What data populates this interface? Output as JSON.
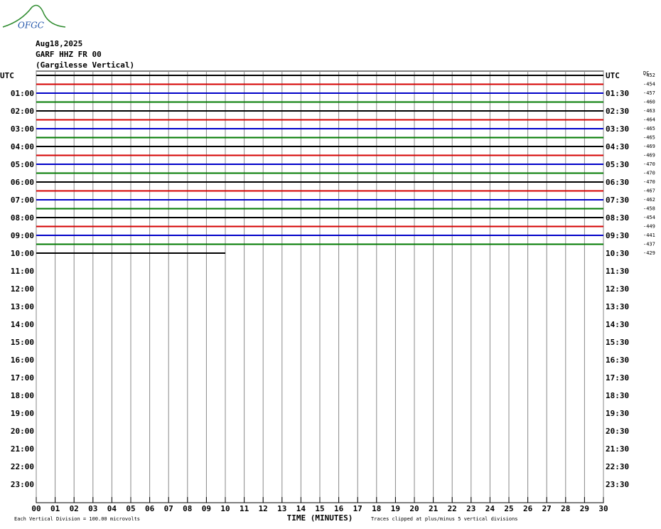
{
  "logo": "OFGC",
  "chart_data": {
    "type": "helicorder",
    "date": "Aug18,2025",
    "station": "GARF HHZ FR 00",
    "station_name": "(Gargilesse Vertical)",
    "left_labels": [
      "UTC",
      "01:00",
      "02:00",
      "03:00",
      "04:00",
      "05:00",
      "06:00",
      "07:00",
      "08:00",
      "09:00",
      "10:00",
      "11:00",
      "12:00",
      "13:00",
      "14:00",
      "15:00",
      "16:00",
      "17:00",
      "18:00",
      "19:00",
      "20:00",
      "21:00",
      "22:00",
      "23:00"
    ],
    "right_labels": [
      "UTC",
      "01:30",
      "02:30",
      "03:30",
      "04:30",
      "05:30",
      "06:30",
      "07:30",
      "08:30",
      "09:30",
      "10:30",
      "11:30",
      "12:30",
      "13:30",
      "14:30",
      "15:30",
      "16:30",
      "17:30",
      "18:30",
      "19:30",
      "20:30",
      "21:30",
      "22:30",
      "23:30"
    ],
    "dc_title": "DC",
    "dc_offsets": [
      -452,
      -454,
      -457,
      -460,
      -463,
      -464,
      -465,
      -465,
      -469,
      -469,
      -470,
      -470,
      -470,
      -467,
      -462,
      -458,
      -454,
      -449,
      -441,
      -437,
      -429
    ],
    "last_trace_minutes": 10,
    "colors": [
      "#000000",
      "#d40000",
      "#0000c8",
      "#007a00"
    ],
    "xlabel": "TIME (MINUTES)",
    "xlim": [
      0,
      30
    ],
    "xticks": [
      {
        "value": 0,
        "label": "00"
      },
      {
        "value": 1,
        "label": "01"
      },
      {
        "value": 2,
        "label": "02"
      },
      {
        "value": 3,
        "label": "03"
      },
      {
        "value": 4,
        "label": "04"
      },
      {
        "value": 5,
        "label": "05"
      },
      {
        "value": 6,
        "label": "06"
      },
      {
        "value": 7,
        "label": "07"
      },
      {
        "value": 8,
        "label": "08"
      },
      {
        "value": 9,
        "label": "09"
      },
      10,
      11,
      12,
      13,
      14,
      15,
      16,
      17,
      18,
      19,
      20,
      21,
      22,
      23,
      24,
      25,
      26,
      27,
      28,
      29,
      30
    ],
    "note_left": "Each Vertical Division =  100.00 microvolts",
    "note_right": "Traces clipped at plus/minus 5 vertical divisions"
  }
}
